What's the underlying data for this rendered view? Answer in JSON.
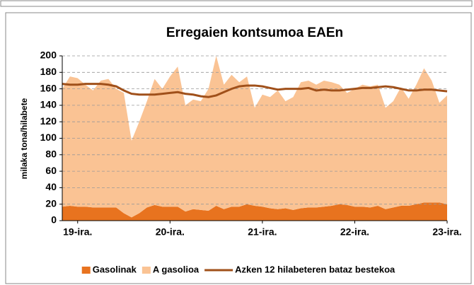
{
  "chart_data": {
    "type": "stacked_area_line",
    "title": "Erregaien kontsumoa EAEn",
    "y_label": "milaka tona/hilabete",
    "categories": [
      null,
      null,
      "19-ira.",
      null,
      null,
      null,
      null,
      null,
      null,
      null,
      null,
      null,
      null,
      null,
      "20-ira.",
      null,
      null,
      null,
      null,
      null,
      null,
      null,
      null,
      null,
      null,
      null,
      "21-ira.",
      null,
      null,
      null,
      null,
      null,
      null,
      null,
      null,
      null,
      null,
      null,
      "22-ira.",
      null,
      null,
      null,
      null,
      null,
      null,
      null,
      null,
      null,
      null,
      null,
      "23-ira."
    ],
    "series": [
      {
        "name": "Gasolinak",
        "color": "#e8731f",
        "kind": "area",
        "values": [
          17,
          18,
          17,
          17,
          16,
          16,
          16,
          16,
          9,
          4,
          9,
          16,
          19,
          17,
          17,
          17,
          11,
          14,
          13,
          12,
          18,
          14,
          17,
          17,
          20,
          18,
          17,
          15,
          14,
          15,
          13,
          15,
          16,
          16,
          17,
          18,
          20,
          19,
          17,
          17,
          16,
          18,
          14,
          16,
          18,
          18,
          20,
          22,
          22,
          22,
          20
        ]
      },
      {
        "name": "A gasolioa",
        "color": "#fac394",
        "kind": "area",
        "values": [
          143,
          157,
          156,
          148,
          142,
          154,
          156,
          144,
          146,
          93,
          111,
          129,
          153,
          143,
          158,
          170,
          129,
          133,
          132,
          148,
          182,
          151,
          160,
          151,
          155,
          119,
          136,
          135,
          144,
          130,
          137,
          153,
          154,
          149,
          153,
          150,
          145,
          136,
          143,
          148,
          147,
          147,
          123,
          129,
          144,
          130,
          145,
          163,
          148,
          121,
          132
        ]
      },
      {
        "name": "Azken 12 hilabeteren bataz bestekoa",
        "color": "#a0501a",
        "kind": "line",
        "values": [
          166,
          165,
          165,
          166,
          166,
          166,
          165,
          163,
          158,
          154,
          153,
          153,
          153,
          154,
          155,
          156,
          154,
          153,
          151,
          150,
          152,
          156,
          160,
          163,
          164,
          164,
          163,
          161,
          159,
          160,
          160,
          160,
          161,
          158,
          159,
          158,
          158,
          159,
          160,
          161,
          161,
          162,
          163,
          162,
          160,
          158,
          158,
          159,
          159,
          158,
          157
        ]
      }
    ],
    "ylim": [
      0,
      200
    ],
    "yticks": [
      0,
      20,
      40,
      60,
      80,
      100,
      120,
      140,
      160,
      180,
      200
    ],
    "grid": true
  }
}
